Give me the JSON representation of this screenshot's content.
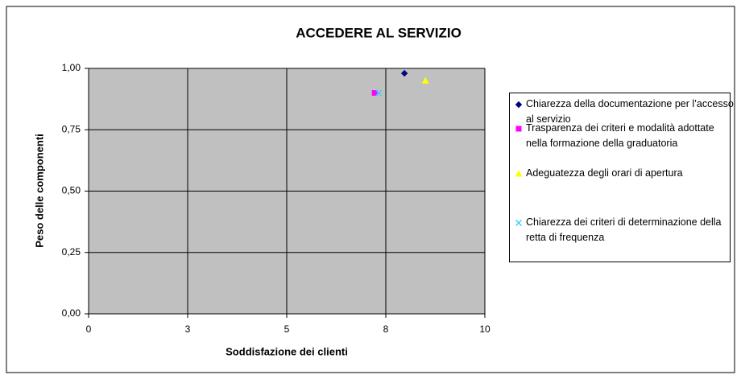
{
  "chart_data": {
    "type": "scatter",
    "title": "ACCEDERE AL SERVIZIO",
    "x_label": "Soddisfazione dei clienti",
    "y_label": "Peso delle componenti",
    "xlim": [
      0,
      10
    ],
    "xticks": [
      {
        "value": 0,
        "label": "0"
      },
      {
        "value": 2.5,
        "label": "3"
      },
      {
        "value": 5,
        "label": "5"
      },
      {
        "value": 7.5,
        "label": "8"
      },
      {
        "value": 10,
        "label": "10"
      }
    ],
    "ylim": [
      0,
      1
    ],
    "yticks": [
      {
        "value": 0,
        "label": "0,00"
      },
      {
        "value": 0.25,
        "label": "0,25"
      },
      {
        "value": 0.5,
        "label": "0,50"
      },
      {
        "value": 0.75,
        "label": "0,75"
      },
      {
        "value": 1,
        "label": "1,00"
      }
    ],
    "grid": true,
    "legend": "right",
    "series": [
      {
        "name": "Chiarezza della documentazione per l’accesso al servizio",
        "color": "#000080",
        "marker": "diamond",
        "x": [
          7.97
        ],
        "values": [
          0.98
        ]
      },
      {
        "name": "Trasparenza dei criteri e modalità adottate nella formazione della graduatoria",
        "color": "#ff00ff",
        "marker": "square",
        "x": [
          7.22
        ],
        "values": [
          0.9
        ]
      },
      {
        "name": "Adeguatezza degli orari di apertura",
        "color": "#ffff00",
        "marker": "triangle",
        "x": [
          8.5
        ],
        "values": [
          0.95
        ]
      },
      {
        "name": "Chiarezza dei criteri di determinazione della retta di frequenza",
        "color": "#33ccff",
        "marker": "x",
        "x": [
          7.32
        ],
        "values": [
          0.9
        ]
      }
    ]
  }
}
